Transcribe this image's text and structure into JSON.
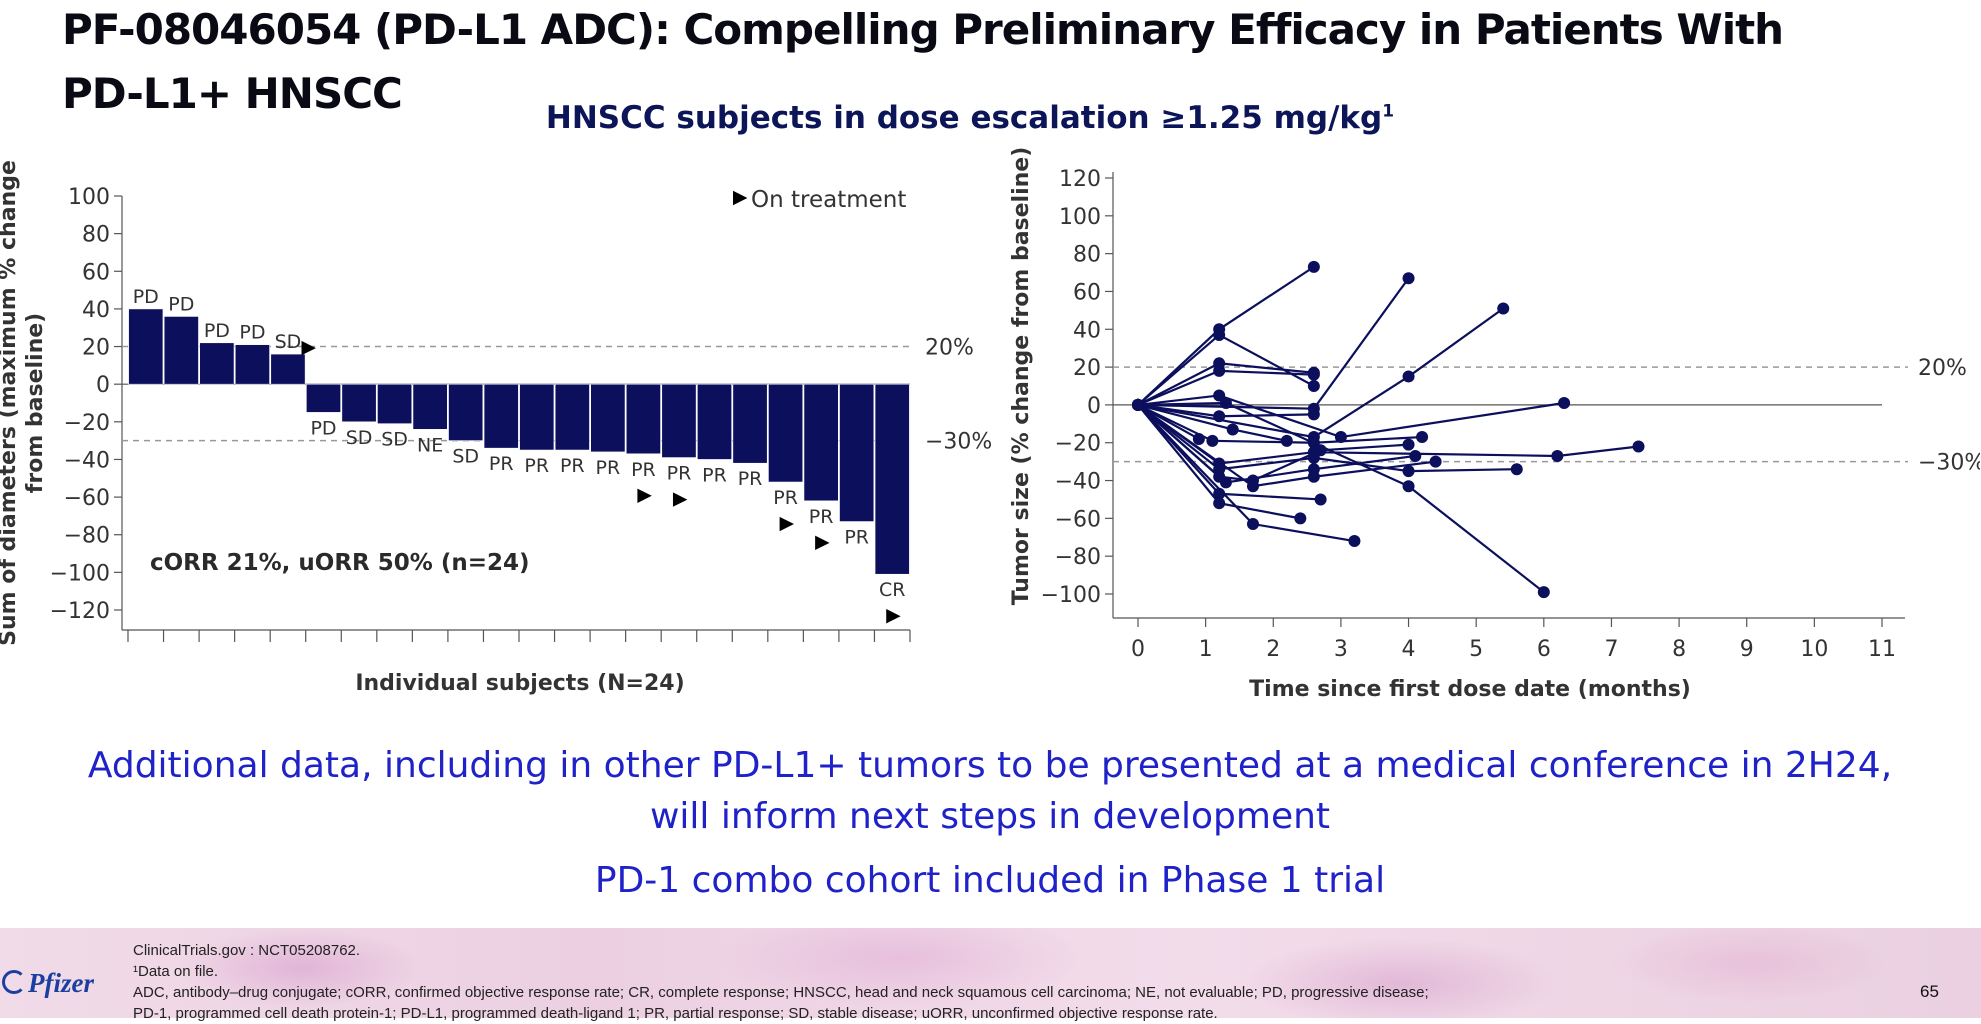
{
  "slide": {
    "title": "PF-08046054 (PD-L1 ADC): Compelling Preliminary Efficacy in Patients With PD-L1+ HNSCC",
    "subtitle": "HNSCC subjects in dose escalation ≥1.25 mg/kg",
    "subtitle_sup": "1",
    "message_1": "Additional data, including in other PD-L1+ tumors to be presented at a medical conference in 2H24, will inform next steps in development",
    "message_2": "PD-1 combo cohort included in Phase 1 trial",
    "page_number": "65",
    "logo_text": "Pfizer",
    "footnotes": [
      "ClinicalTrials.gov : NCT05208762.",
      "¹Data on file.",
      "ADC, antibody–drug conjugate; cORR, confirmed objective response rate; CR, complete response; HNSCC, head and neck squamous cell carcinoma; NE, not evaluable; PD, progressive disease;",
      "PD-1, programmed cell death protein-1; PD-L1, programmed death-ligand 1; PR, partial response; SD, stable disease; uORR, unconfirmed objective response rate."
    ]
  },
  "colors": {
    "navy": "#0b0f5c",
    "title": "#0a0a14",
    "subtitle": "#0b1557",
    "message": "#1f22c8",
    "grid": "#999999",
    "text": "#333333"
  },
  "chart_data": [
    {
      "type": "bar",
      "ylabel": "Sum of diameters (maximum % change from baseline)",
      "xlabel": "Individual subjects (N=24)",
      "ylim": [
        -120,
        100
      ],
      "yticks": [
        100,
        80,
        60,
        40,
        20,
        0,
        -20,
        -40,
        -60,
        -80,
        -100,
        -120
      ],
      "ytick_labels": [
        "100",
        "80",
        "60",
        "40",
        "20",
        "0",
        "−20",
        "−40",
        "−60",
        "−80",
        "−100",
        "−120"
      ],
      "values": [
        40,
        36,
        22,
        21,
        16,
        -15,
        -20,
        -21,
        -24,
        -30,
        -34,
        -35,
        -35,
        -36,
        -37,
        -39,
        -40,
        -42,
        -52,
        -62,
        -73,
        -101
      ],
      "responses": [
        "PD",
        "PD",
        "PD",
        "PD",
        "SD",
        "PD",
        "SD",
        "SD",
        "NE",
        "SD",
        "PR",
        "PR",
        "PR",
        "PR",
        "PR",
        "PR",
        "PR",
        "PR",
        "PR",
        "PR",
        "PR",
        "CR"
      ],
      "on_treatment": [
        false,
        false,
        false,
        false,
        true,
        false,
        false,
        false,
        false,
        false,
        false,
        false,
        false,
        false,
        true,
        true,
        false,
        false,
        true,
        true,
        false,
        true
      ],
      "reference_lines": [
        20,
        -30
      ],
      "reference_labels": [
        "20%",
        "−30%"
      ],
      "legend_label": "On treatment",
      "annotation": "cORR 21%, uORR 50% (n=24)"
    },
    {
      "type": "line",
      "ylabel": "Tumor size (% change from baseline)",
      "xlabel": "Time since first dose date (months)",
      "xlim": [
        0,
        11
      ],
      "ylim": [
        -100,
        120
      ],
      "xticks": [
        0,
        1,
        2,
        3,
        4,
        5,
        6,
        7,
        8,
        9,
        10,
        11
      ],
      "xtick_labels": [
        "0",
        "1",
        "2",
        "3",
        "4",
        "5",
        "6",
        "7",
        "8",
        "9",
        "10",
        "11"
      ],
      "yticks": [
        120,
        100,
        80,
        60,
        40,
        20,
        0,
        -20,
        -40,
        -60,
        -80,
        -100
      ],
      "ytick_labels": [
        "120",
        "100",
        "80",
        "60",
        "40",
        "20",
        "0",
        "−20",
        "−40",
        "−60",
        "−80",
        "−100"
      ],
      "reference_lines": [
        20,
        -30
      ],
      "reference_labels": [
        "20%",
        "−30%"
      ],
      "series": [
        {
          "x": [
            0,
            1.2,
            2.6
          ],
          "y": [
            0,
            40,
            73
          ]
        },
        {
          "x": [
            0,
            1.2,
            2.6
          ],
          "y": [
            0,
            37,
            10
          ]
        },
        {
          "x": [
            0,
            1.2,
            2.6
          ],
          "y": [
            0,
            22,
            17
          ]
        },
        {
          "x": [
            0,
            1.2,
            2.6
          ],
          "y": [
            0,
            18,
            16
          ]
        },
        {
          "x": [
            0,
            2.6,
            4.0
          ],
          "y": [
            0,
            -2,
            67
          ]
        },
        {
          "x": [
            0,
            2.6,
            4.0,
            5.4
          ],
          "y": [
            0,
            -17,
            15,
            51
          ]
        },
        {
          "x": [
            0,
            1.2,
            3.0,
            6.3
          ],
          "y": [
            0,
            5,
            -17,
            1
          ]
        },
        {
          "x": [
            0,
            1.2,
            2.6
          ],
          "y": [
            0,
            -6,
            -5
          ]
        },
        {
          "x": [
            0,
            1.3,
            4.0,
            6.0
          ],
          "y": [
            0,
            1,
            -43,
            -99
          ]
        },
        {
          "x": [
            0,
            0.9
          ],
          "y": [
            0,
            -18
          ]
        },
        {
          "x": [
            0,
            1.4,
            2.2
          ],
          "y": [
            0,
            -13,
            -19
          ]
        },
        {
          "x": [
            0,
            1.1,
            2.6,
            4.2
          ],
          "y": [
            0,
            -19,
            -20,
            -17
          ]
        },
        {
          "x": [
            0,
            1.2,
            2.6,
            6.2,
            7.4
          ],
          "y": [
            0,
            -31,
            -25,
            -27,
            -22
          ]
        },
        {
          "x": [
            0,
            1.2,
            2.6,
            4.0,
            5.6
          ],
          "y": [
            0,
            -34,
            -28,
            -35,
            -34
          ]
        },
        {
          "x": [
            0,
            1.2,
            1.7,
            2.7,
            4.0
          ],
          "y": [
            0,
            -38,
            -40,
            -24,
            -21
          ]
        },
        {
          "x": [
            0,
            1.3,
            2.6,
            4.1
          ],
          "y": [
            0,
            -41,
            -34,
            -27
          ]
        },
        {
          "x": [
            0,
            1.7,
            2.6,
            4.4
          ],
          "y": [
            0,
            -43,
            -38,
            -30
          ]
        },
        {
          "x": [
            0,
            1.2,
            2.7
          ],
          "y": [
            0,
            -47,
            -50
          ]
        },
        {
          "x": [
            0,
            1.2,
            2.4
          ],
          "y": [
            0,
            -52,
            -60
          ]
        },
        {
          "x": [
            0,
            1.7,
            3.2
          ],
          "y": [
            0,
            -63,
            -72
          ]
        }
      ]
    }
  ]
}
